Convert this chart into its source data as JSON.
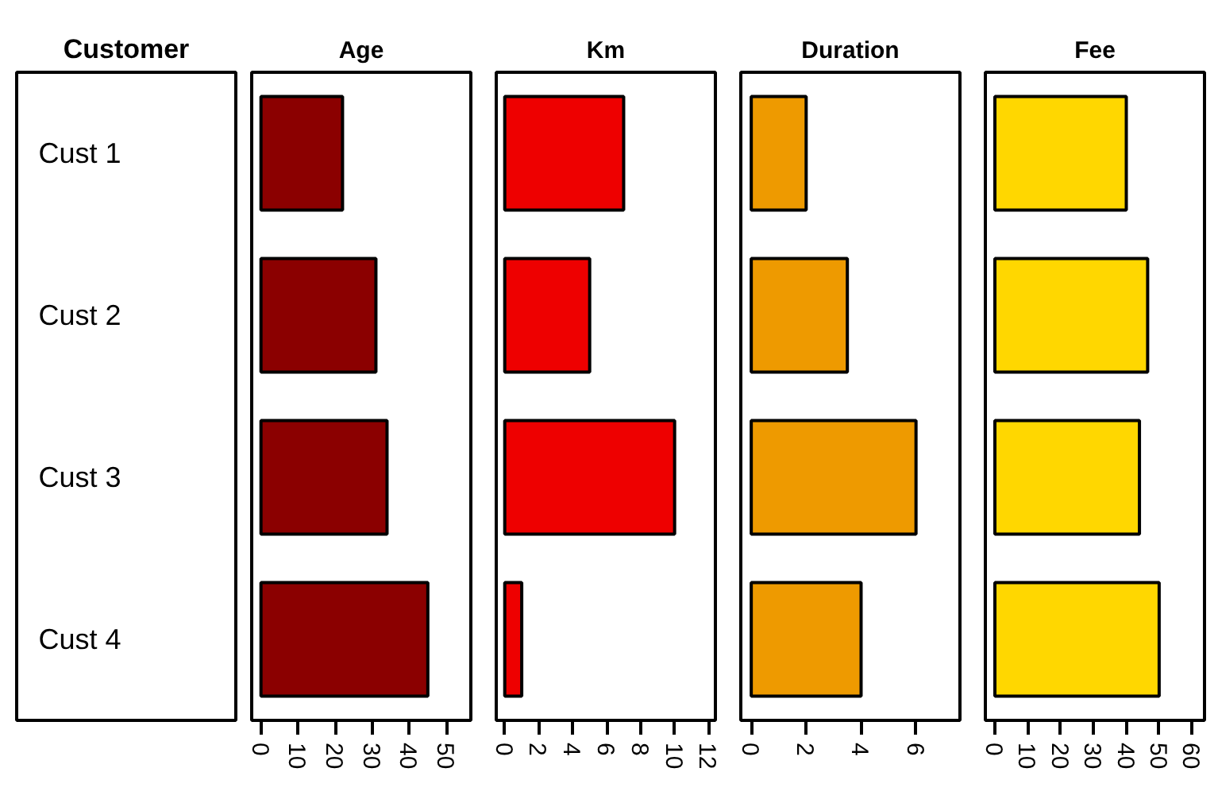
{
  "chart_data": [
    {
      "type": "bar",
      "orientation": "horizontal",
      "title": "Age",
      "ylabel": "Customer",
      "categories": [
        "Cust 1",
        "Cust 2",
        "Cust 3",
        "Cust 4"
      ],
      "values": [
        22,
        31,
        34,
        45
      ],
      "color": "#8b0000",
      "xlim": [
        -2.5,
        56.6
      ],
      "xticks": [
        0,
        10,
        20,
        30,
        40,
        50
      ],
      "grid": false
    },
    {
      "type": "bar",
      "orientation": "horizontal",
      "title": "Km",
      "categories": [
        null,
        null,
        null,
        null
      ],
      "values": [
        7,
        5,
        10,
        1
      ],
      "color": "#ee0000",
      "xlim": [
        -0.5,
        12.4
      ],
      "xticks": [
        0,
        2,
        4,
        6,
        8,
        10,
        12
      ],
      "tick_labels": "x",
      "grid": false
    },
    {
      "type": "bar",
      "orientation": "horizontal",
      "title": "Duration",
      "categories": [
        null,
        null,
        null,
        null
      ],
      "values": [
        2,
        3.5,
        6,
        4
      ],
      "color": "#ee9a00",
      "xlim": [
        -0.38,
        7.6
      ],
      "xticks": [
        0,
        2,
        4,
        6
      ],
      "tick_labels": "x",
      "grid": false
    },
    {
      "type": "bar",
      "orientation": "horizontal",
      "title": "Fee",
      "categories": [
        null,
        null,
        null,
        null
      ],
      "values": [
        40,
        46.5,
        44,
        50
      ],
      "color": "#ffd700",
      "xlim": [
        -2.9,
        63.8
      ],
      "xticks": [
        0,
        10,
        20,
        30,
        40,
        50,
        60
      ],
      "tick_labels": "x",
      "grid": false
    }
  ]
}
